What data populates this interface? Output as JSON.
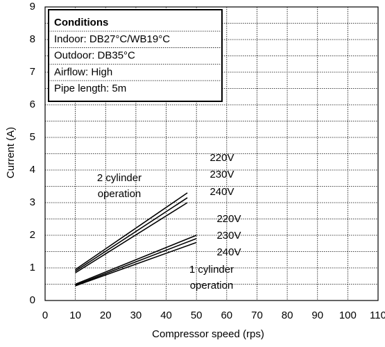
{
  "chart_data": {
    "type": "line",
    "xlabel": "Compressor speed (rps)",
    "ylabel": "Current (A)",
    "xlim": [
      0,
      110
    ],
    "xticks": [
      0,
      10,
      20,
      30,
      40,
      50,
      60,
      70,
      80,
      90,
      100,
      110
    ],
    "ylim": [
      0,
      9
    ],
    "yticks": [
      0,
      1,
      2,
      3,
      4,
      5,
      6,
      7,
      8,
      9
    ],
    "yminor": [
      0.5,
      1.5,
      2.5,
      3.5,
      4.5,
      5.5,
      6.5,
      7.5,
      8.5
    ],
    "grid": true,
    "color": "#000000",
    "conditions": {
      "title": "Conditions",
      "lines": [
        "Indoor: DB27°C/WB19°C",
        "Outdoor: DB35°C",
        "Airflow: High",
        "Pipe length: 5m"
      ]
    },
    "groups": [
      {
        "label": [
          "2 cylinder",
          "operation"
        ]
      },
      {
        "label": [
          "1 cylinder",
          "operation"
        ]
      }
    ],
    "series": [
      {
        "name": "220V",
        "group": 0,
        "x": [
          10,
          47
        ],
        "values": [
          0.95,
          3.3
        ]
      },
      {
        "name": "230V",
        "group": 0,
        "x": [
          10,
          47
        ],
        "values": [
          0.9,
          3.15
        ]
      },
      {
        "name": "240V",
        "group": 0,
        "x": [
          10,
          47
        ],
        "values": [
          0.85,
          3.0
        ]
      },
      {
        "name": "220V",
        "group": 1,
        "x": [
          10,
          50
        ],
        "values": [
          0.5,
          2.0
        ]
      },
      {
        "name": "230V",
        "group": 1,
        "x": [
          10,
          50
        ],
        "values": [
          0.47,
          1.9
        ]
      },
      {
        "name": "240V",
        "group": 1,
        "x": [
          10,
          50
        ],
        "values": [
          0.45,
          1.78
        ]
      }
    ]
  }
}
